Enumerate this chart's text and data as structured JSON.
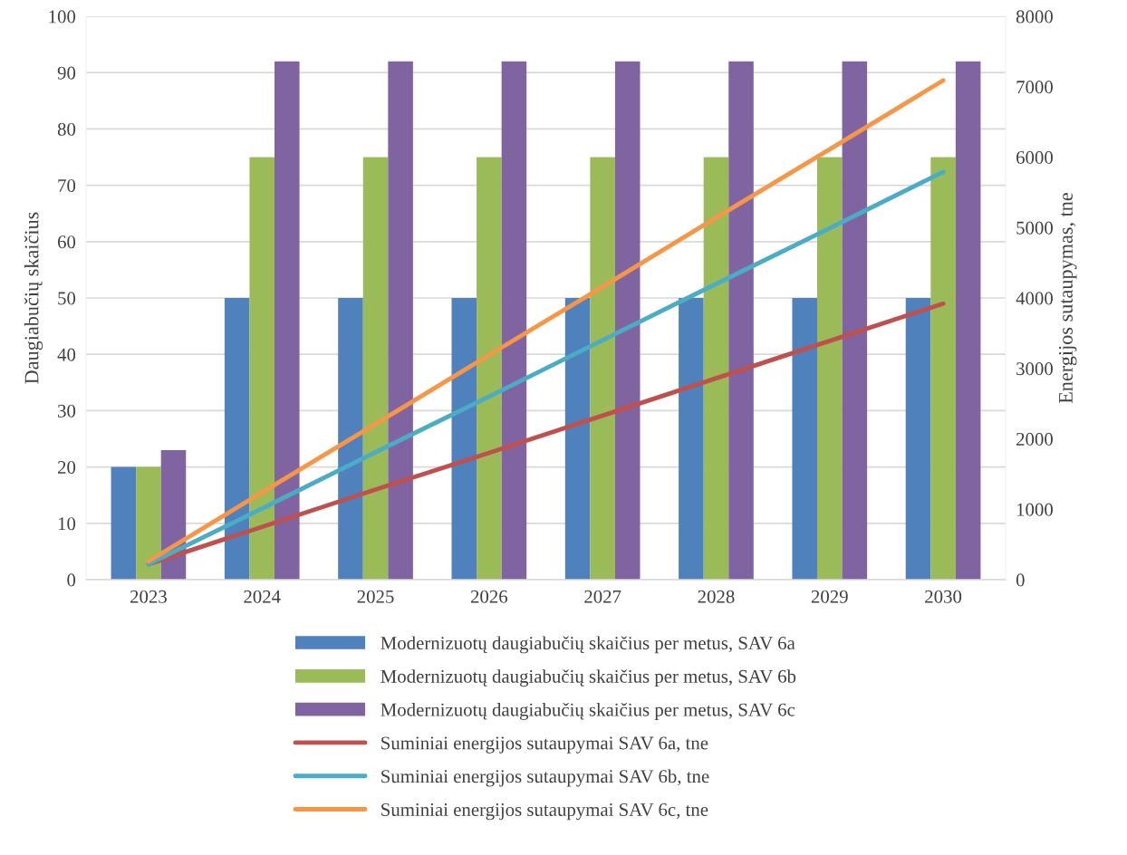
{
  "chart_data": {
    "type": "bar",
    "ylabel": "Daugiabučių skaičius",
    "y2label": "Energijos sutaupymas, tne",
    "categories": [
      "2023",
      "2024",
      "2025",
      "2026",
      "2027",
      "2028",
      "2029",
      "2030"
    ],
    "series": [
      {
        "name": "Modernizuotų daugiabučių skaičius per metus, SAV 6a",
        "color": "#4f81bd",
        "values": [
          20,
          50,
          50,
          50,
          50,
          50,
          50,
          50
        ]
      },
      {
        "name": "Modernizuotų daugiabučių skaičius per metus, SAV 6b",
        "color": "#9bbb59",
        "values": [
          20,
          75,
          75,
          75,
          75,
          75,
          75,
          75
        ]
      },
      {
        "name": "Modernizuotų daugiabučių skaičius per metus, SAV 6c",
        "color": "#8064a2",
        "values": [
          23,
          92,
          92,
          92,
          92,
          92,
          92,
          92
        ]
      },
      {
        "name": "Suminiai energijos sutaupymai SAV 6a, tne",
        "color": "#c0504d",
        "type": "line",
        "axis": "y2",
        "values": [
          220,
          750,
          1280,
          1800,
          2330,
          2860,
          3390,
          3920
        ]
      },
      {
        "name": "Suminiai energijos sutaupymai SAV 6b, tne",
        "color": "#4bacc6",
        "type": "line",
        "axis": "y2",
        "values": [
          220,
          1010,
          1810,
          2600,
          3400,
          4200,
          4990,
          5790
        ]
      },
      {
        "name": "Suminiai energijos sutaupymai SAV 6c, tne",
        "color": "#f79646",
        "type": "line",
        "axis": "y2",
        "values": [
          260,
          1240,
          2210,
          3190,
          4160,
          5140,
          6110,
          7090
        ]
      }
    ],
    "ylim": [
      0,
      100
    ],
    "yticks": [
      0,
      10,
      20,
      30,
      40,
      50,
      60,
      70,
      80,
      90,
      100
    ],
    "y2lim": [
      0,
      8000
    ],
    "y2ticks": [
      0,
      1000,
      2000,
      3000,
      4000,
      5000,
      6000,
      7000,
      8000
    ],
    "grid": "y",
    "legend": "bottom",
    "marker": "none"
  }
}
